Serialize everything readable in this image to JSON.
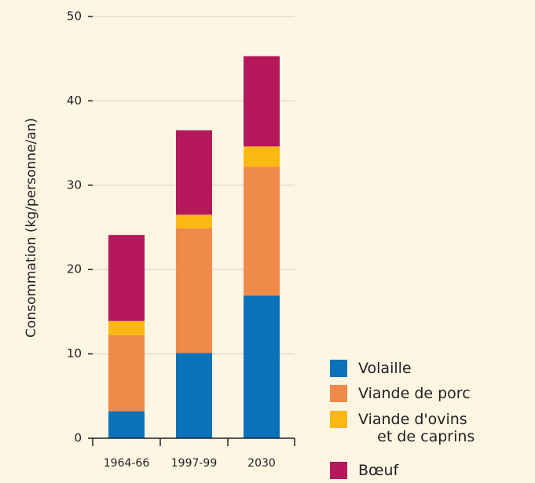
{
  "chart_data": {
    "type": "stacked_bar",
    "y_label": "Consommation (kg/personne/an)",
    "categories": [
      "1964-66",
      "1997-99",
      "2030"
    ],
    "series": [
      {
        "name": "Volaille",
        "color": "#0a72b8",
        "values": [
          3.2,
          10.1,
          16.9
        ]
      },
      {
        "name": "Viande de porc",
        "color": "#f08a4b",
        "values": [
          9.0,
          14.8,
          15.3
        ]
      },
      {
        "name": "Viande d'ovins\n    et de caprins",
        "color": "#fbb813",
        "values": [
          1.7,
          1.6,
          2.4
        ]
      },
      {
        "name": "Bœuf",
        "color": "#b5195b",
        "values": [
          10.2,
          10.0,
          10.7
        ]
      }
    ],
    "ylim": [
      0,
      50
    ],
    "yticks": [
      0,
      10,
      20,
      30,
      40,
      50
    ],
    "grid": true
  }
}
